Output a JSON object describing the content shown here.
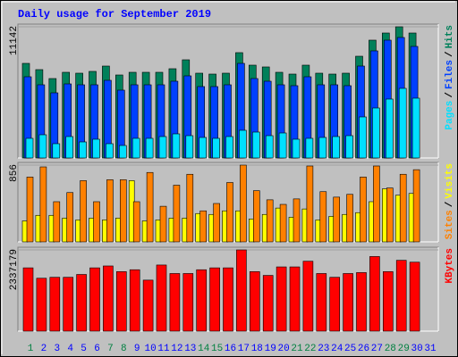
{
  "title": "Daily usage for September 2019",
  "legend_separator": "/",
  "chart_data": [
    {
      "type": "bar",
      "ylim": [
        0,
        11142
      ],
      "yticks": [
        11142
      ],
      "series": [
        {
          "name": "Pages",
          "color": "#00e0ff",
          "values": [
            1668,
            1971,
            1213,
            1819,
            1364,
            1592,
            1213,
            1061,
            1668,
            1668,
            1819,
            2047,
            1895,
            1743,
            1668,
            1819,
            2350,
            2198,
            1895,
            2122,
            1592,
            1668,
            1743,
            1819,
            1895,
            3487,
            4245,
            5003,
            5912,
            5079,
            null
          ]
        },
        {
          "name": "Files",
          "color": "#0040ff",
          "values": [
            6898,
            6216,
            5533,
            6291,
            6216,
            6216,
            6595,
            5761,
            6216,
            6216,
            6216,
            6519,
            6974,
            6064,
            6064,
            6216,
            8035,
            6746,
            6519,
            6216,
            6140,
            6898,
            6216,
            6216,
            6140,
            7807,
            9096,
            10006,
            10233,
            9475,
            null
          ]
        },
        {
          "name": "Hits",
          "color": "#00805a",
          "values": [
            8035,
            7504,
            6746,
            7277,
            7201,
            7353,
            7807,
            7049,
            7277,
            7277,
            7277,
            7580,
            8338,
            7201,
            7125,
            7201,
            8945,
            7883,
            7732,
            7277,
            7125,
            7883,
            7201,
            7125,
            7201,
            8641,
            10006,
            10612,
            11142,
            10612,
            null
          ]
        }
      ]
    },
    {
      "type": "bar",
      "ylim": [
        0,
        856
      ],
      "yticks": [
        856
      ],
      "series": [
        {
          "name": "Sites",
          "color": "#ff8000",
          "values": [
            723,
            836,
            448,
            550,
            683,
            448,
            693,
            693,
            448,
            774,
            397,
            632,
            754,
            346,
            428,
            662,
            856,
            571,
            469,
            418,
            479,
            846,
            560,
            499,
            530,
            723,
            846,
            601,
            754,
            805,
            null
          ]
        },
        {
          "name": "Visits",
          "color": "#ffff00",
          "values": [
            234,
            296,
            296,
            265,
            245,
            265,
            245,
            265,
            683,
            234,
            245,
            265,
            265,
            316,
            306,
            346,
            346,
            255,
            306,
            377,
            275,
            367,
            245,
            285,
            306,
            326,
            448,
            591,
            520,
            540,
            null
          ]
        }
      ]
    },
    {
      "type": "bar",
      "ylim": [
        0,
        2337179
      ],
      "yticks": [
        2337179
      ],
      "categories": [
        "1",
        "2",
        "3",
        "4",
        "5",
        "6",
        "7",
        "8",
        "9",
        "10",
        "11",
        "12",
        "13",
        "14",
        "15",
        "16",
        "17",
        "18",
        "19",
        "20",
        "21",
        "22",
        "23",
        "24",
        "25",
        "26",
        "27",
        "28",
        "29",
        "30",
        "31"
      ],
      "category_colors": [
        "#008040",
        "#0000ff",
        "#0000ff",
        "#0000ff",
        "#0000ff",
        "#0000ff",
        "#008040",
        "#008040",
        "#0000ff",
        "#0000ff",
        "#0000ff",
        "#0000ff",
        "#0000ff",
        "#008040",
        "#008040",
        "#0000ff",
        "#0000ff",
        "#0000ff",
        "#0000ff",
        "#0000ff",
        "#008040",
        "#008040",
        "#0000ff",
        "#0000ff",
        "#0000ff",
        "#0000ff",
        "#0000ff",
        "#008040",
        "#008040",
        "#0000ff",
        "#0000ff"
      ],
      "series": [
        {
          "name": "KBytes",
          "color": "#ff0000",
          "values": [
            1820859,
            1521912,
            1549089,
            1549089,
            1630620,
            1820859,
            1875213,
            1712151,
            1766505,
            1467558,
            1902390,
            1657797,
            1657797,
            1766505,
            1820859,
            1820859,
            2337179,
            1712151,
            1603443,
            1848036,
            1848036,
            2011098,
            1657797,
            1549089,
            1657797,
            1684974,
            2146983,
            1712151,
            2038275,
            1983921,
            null
          ]
        }
      ]
    }
  ]
}
